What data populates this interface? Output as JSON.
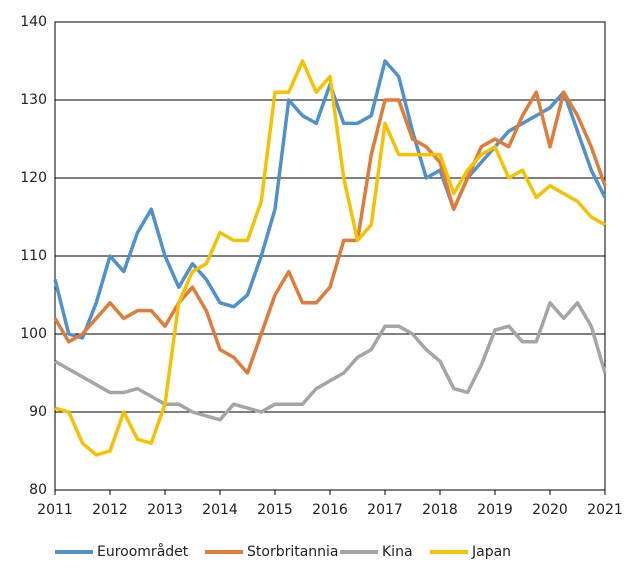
{
  "chart_data": {
    "type": "line",
    "x": [
      2011,
      2011.25,
      2011.5,
      2011.75,
      2012,
      2012.25,
      2012.5,
      2012.75,
      2013,
      2013.25,
      2013.5,
      2013.75,
      2014,
      2014.25,
      2014.5,
      2014.75,
      2015,
      2015.25,
      2015.5,
      2015.75,
      2016,
      2016.25,
      2016.5,
      2016.75,
      2017,
      2017.25,
      2017.5,
      2017.75,
      2018,
      2018.25,
      2018.5,
      2018.75,
      2019,
      2019.25,
      2019.5,
      2019.75,
      2020,
      2020.25,
      2020.5,
      2020.75,
      2021
    ],
    "series": [
      {
        "name": "Euroområdet",
        "color": "#4f91cd",
        "values": [
          107,
          100,
          99.5,
          104,
          110,
          108,
          113,
          116,
          110,
          106,
          109,
          107,
          104,
          103.5,
          105,
          110,
          116,
          130,
          128,
          127,
          132,
          127,
          127,
          128,
          135,
          133,
          126,
          120,
          121,
          116,
          120,
          122,
          124,
          126,
          127,
          128,
          129,
          131,
          126,
          121,
          117.5
        ]
      },
      {
        "name": "Storbritannia",
        "color": "#e07b39",
        "values": [
          102,
          99,
          100,
          102,
          104,
          102,
          103,
          103,
          101,
          104,
          106,
          103,
          98,
          97,
          95,
          100,
          105,
          108,
          104,
          104,
          106,
          112,
          112,
          123,
          130,
          130,
          125,
          124,
          122,
          116,
          120,
          124,
          125,
          124,
          128,
          131,
          124,
          131,
          128,
          124,
          119
        ]
      },
      {
        "name": "Kina",
        "color": "#a5a5a5",
        "values": [
          96.5,
          95.5,
          94.5,
          93.5,
          92.5,
          92.5,
          93,
          92,
          91,
          91,
          90,
          89.5,
          89,
          91,
          90.5,
          90,
          91,
          91,
          91,
          93,
          94,
          95,
          97,
          98,
          101,
          101,
          100,
          98,
          96.5,
          93,
          92.5,
          96,
          100.5,
          101,
          99,
          99,
          104,
          102,
          104,
          101,
          95
        ]
      },
      {
        "name": "Japan",
        "color": "#f5c100",
        "values": [
          90.5,
          90,
          86,
          84.5,
          85,
          90,
          86.5,
          86,
          91,
          104,
          108,
          109,
          113,
          112,
          112,
          117,
          131,
          131,
          135,
          131,
          133,
          120,
          112,
          114,
          127,
          123,
          123,
          123,
          123,
          118,
          121,
          123,
          124,
          120,
          121,
          117.5,
          119,
          118,
          117,
          115,
          114
        ]
      }
    ],
    "xlim": [
      2011,
      2021
    ],
    "xticks": [
      2011,
      2012,
      2013,
      2014,
      2015,
      2016,
      2017,
      2018,
      2019,
      2020,
      2021
    ],
    "ylim": [
      80,
      140
    ],
    "yticks": [
      80,
      90,
      100,
      110,
      120,
      130,
      140
    ],
    "grid": true,
    "legend": "bottom"
  }
}
